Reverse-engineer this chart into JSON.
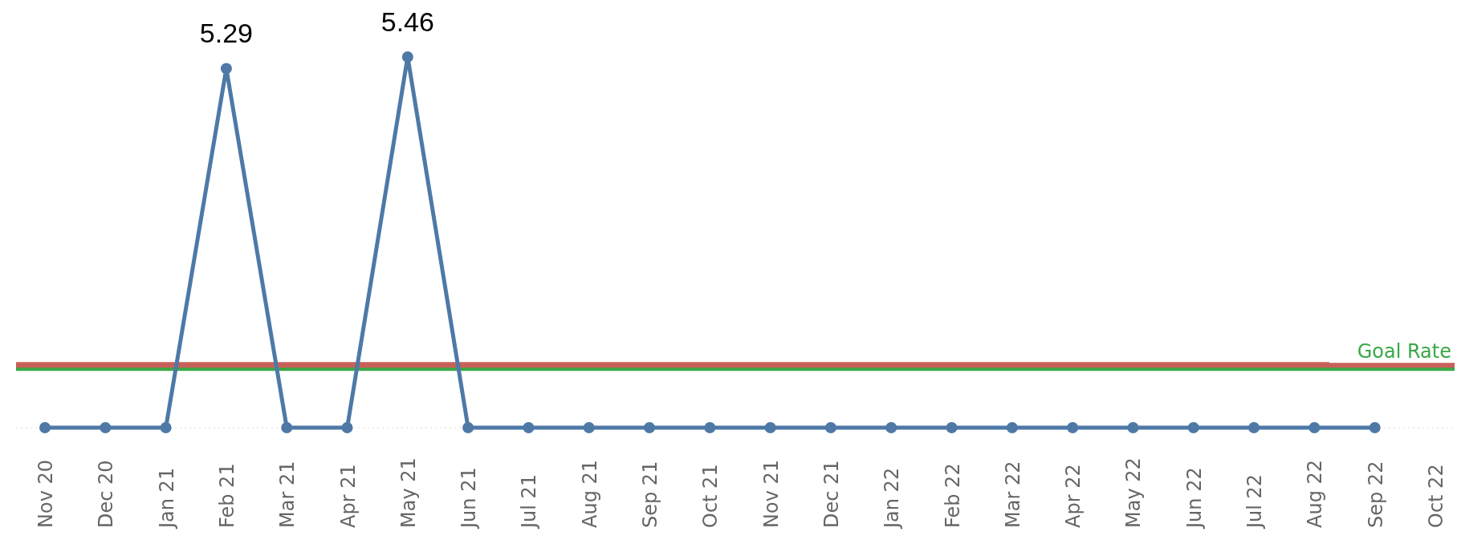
{
  "chart_data": {
    "type": "line",
    "categories": [
      "Nov 20",
      "Dec 20",
      "Jan 21",
      "Feb 21",
      "Mar 21",
      "Apr 21",
      "May 21",
      "Jun 21",
      "Jul 21",
      "Aug 21",
      "Sep 21",
      "Oct 21",
      "Nov 21",
      "Dec 21",
      "Jan 22",
      "Feb 22",
      "Mar 22",
      "Apr 22",
      "May 22",
      "Jun 22",
      "Jul 22",
      "Aug 22",
      "Sep 22",
      "Oct 22"
    ],
    "series": [
      {
        "color": "#4e79a7",
        "values": [
          0,
          0,
          0,
          5.29,
          0,
          0,
          5.46,
          0,
          0,
          0,
          0,
          0,
          0,
          0,
          0,
          0,
          0,
          0,
          0,
          0,
          0,
          0,
          0,
          null
        ],
        "value_labels": [
          null,
          null,
          null,
          "5.29",
          null,
          null,
          "5.46",
          null,
          null,
          null,
          null,
          null,
          null,
          null,
          null,
          null,
          null,
          null,
          null,
          null,
          null,
          null,
          null,
          null
        ]
      }
    ],
    "ref_lines": [
      {
        "axis": "y",
        "value": 0.92,
        "label": null,
        "color": "#c8605a"
      },
      {
        "axis": "y",
        "value": 0.86,
        "label": "Goal Rate",
        "color": "#3aa846"
      }
    ],
    "marker": "circle",
    "line_style": "solid"
  }
}
